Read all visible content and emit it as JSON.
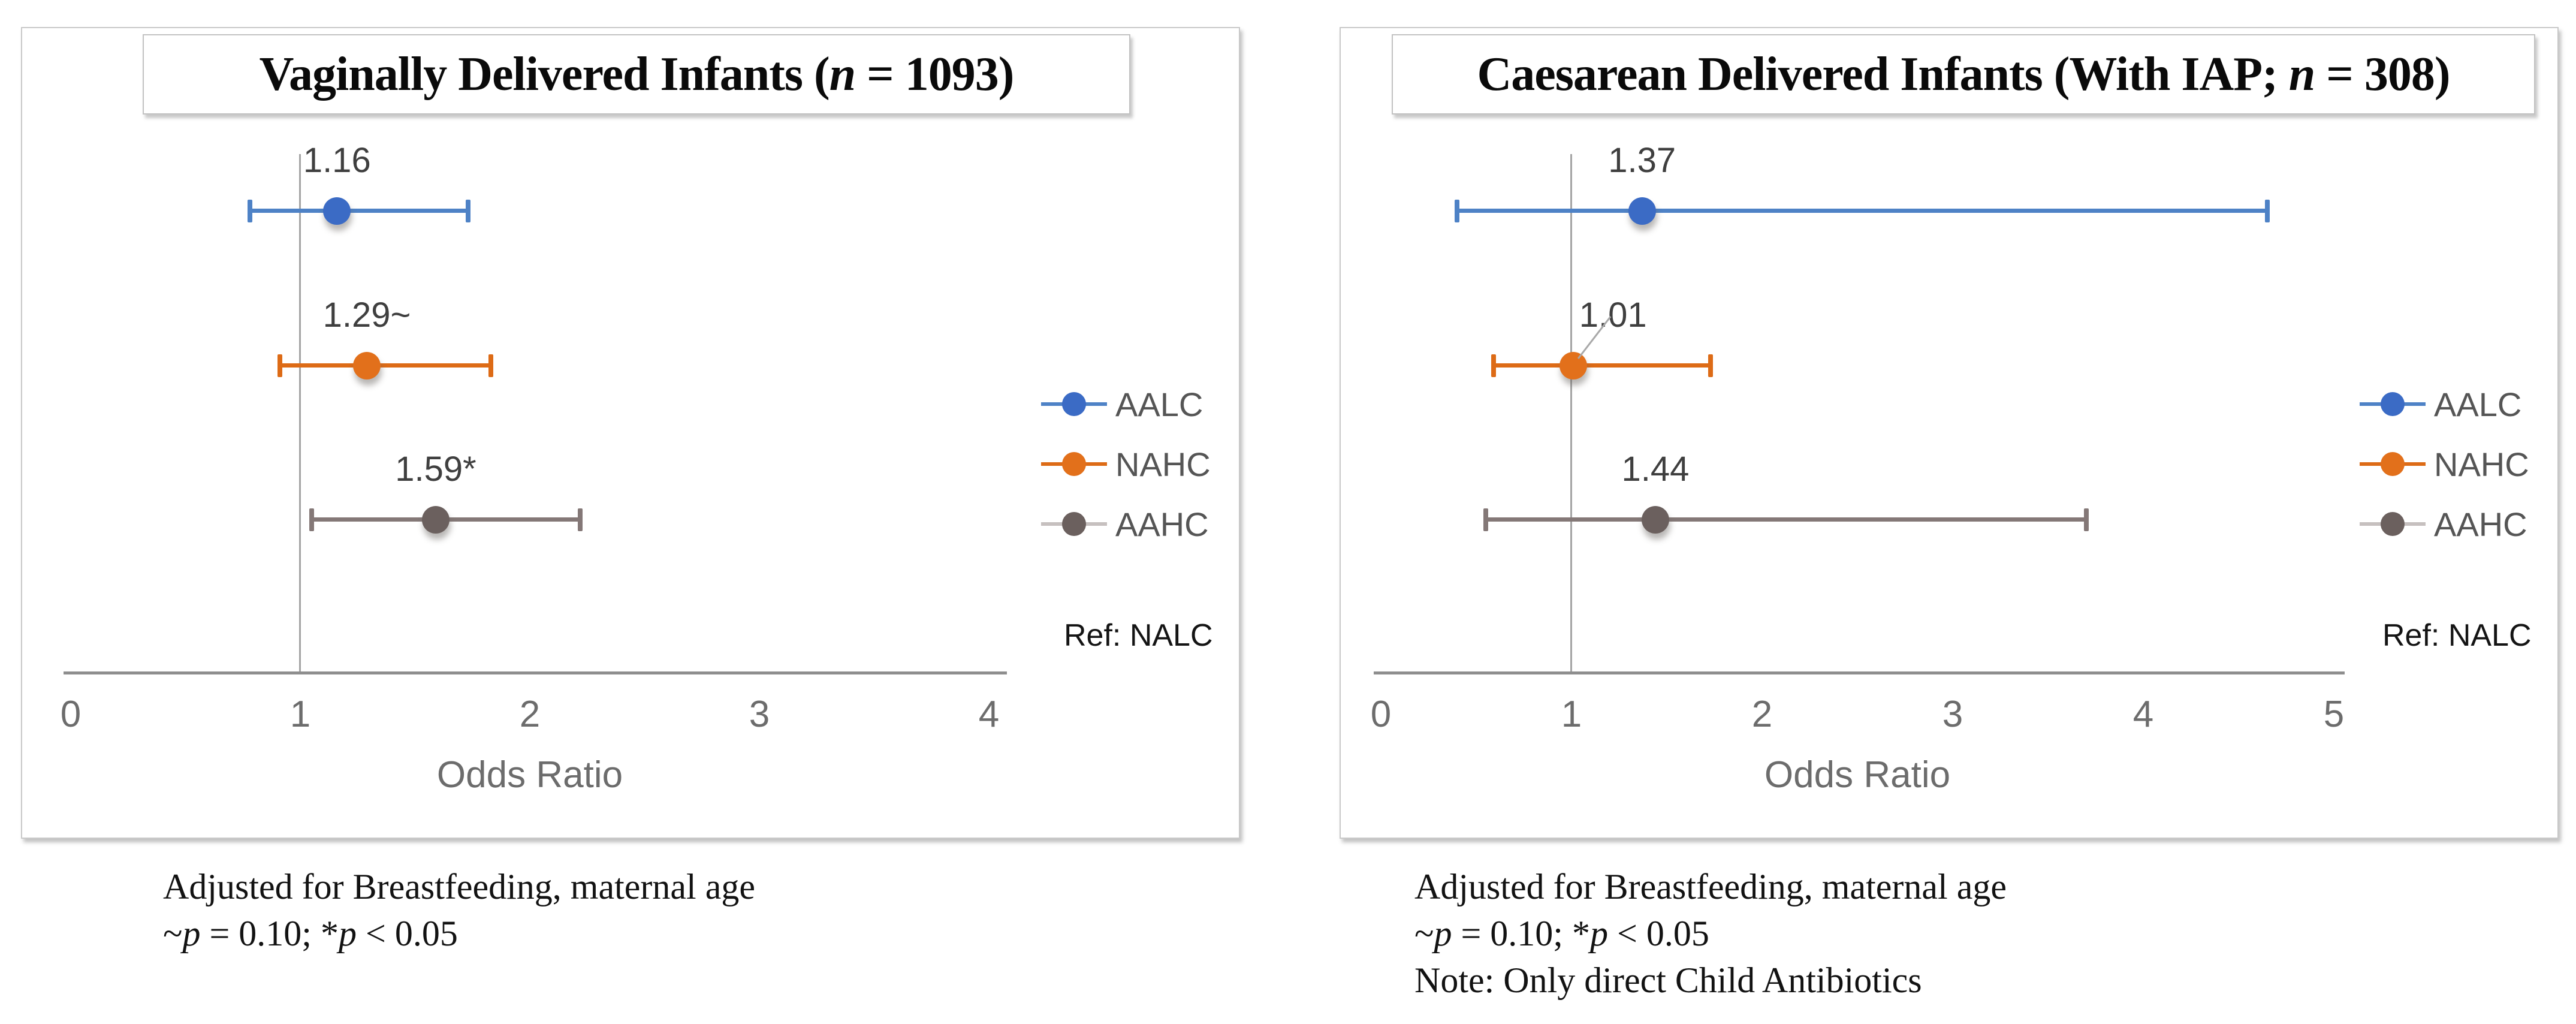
{
  "chart_data": [
    {
      "type": "scatter",
      "title": "Vaginally Delivered Infants (n = 1093)",
      "title_segments": [
        {
          "t": "Vaginally Delivered Infants ("
        },
        {
          "t": "n",
          "i": 1
        },
        {
          "t": " = 1093)"
        }
      ],
      "xlabel": "Odds Ratio",
      "xlim": [
        0,
        4
      ],
      "xticks": [
        "0",
        "1",
        "2",
        "3",
        "4"
      ],
      "reference_line_x": 1,
      "legend_position": "right",
      "grid": "reference line at x=1 only",
      "ref_label": "Ref: NALC",
      "legend_entries": [
        "AALC",
        "NAHC",
        "AAHC"
      ],
      "series": [
        {
          "name": "AALC",
          "odds_ratio": 1.16,
          "ci": [
            0.78,
            1.73
          ],
          "data_label": "1.16",
          "color": "#3B6BC5",
          "line_color": "#4E82C6",
          "legend_line_color": "#4E82C6",
          "leader": false
        },
        {
          "name": "NAHC",
          "odds_ratio": 1.29,
          "ci": [
            0.91,
            1.83
          ],
          "data_label": "1.29~",
          "color": "#E2701B",
          "line_color": "#DD6B16",
          "legend_line_color": "#DD6B16",
          "leader": false
        },
        {
          "name": "AAHC",
          "odds_ratio": 1.59,
          "ci": [
            1.05,
            2.22
          ],
          "data_label": "1.59*",
          "color": "#6B605E",
          "line_color": "#847877",
          "legend_line_color": "#C6C0BF",
          "leader": false
        }
      ],
      "footnote_lines": [
        "Adjusted for Breastfeeding, maternal age",
        "~p = 0.10; *p < 0.05"
      ],
      "footnote_segments": [
        [
          {
            "t": "Adjusted for Breastfeeding, maternal age"
          }
        ],
        [
          {
            "t": "~"
          },
          {
            "t": "p",
            "i": 1
          },
          {
            "t": " = 0.10; *"
          },
          {
            "t": "p",
            "i": 1
          },
          {
            "t": " < 0.05"
          }
        ]
      ]
    },
    {
      "type": "scatter",
      "title": "Caesarean Delivered Infants (With IAP; n = 308)",
      "title_segments": [
        {
          "t": "Caesarean Delivered Infants (With IAP; "
        },
        {
          "t": "n",
          "i": 1
        },
        {
          "t": " = 308)"
        }
      ],
      "xlabel": "Odds Ratio",
      "xlim": [
        0,
        5
      ],
      "xticks": [
        "0",
        "1",
        "2",
        "3",
        "4",
        "5"
      ],
      "reference_line_x": 1,
      "legend_position": "right",
      "grid": "reference line at x=1 only",
      "ref_label": "Ref: NALC",
      "legend_entries": [
        "AALC",
        "NAHC",
        "AAHC"
      ],
      "series": [
        {
          "name": "AALC",
          "odds_ratio": 1.37,
          "ci": [
            0.4,
            4.65
          ],
          "data_label": "1.37",
          "color": "#3B6BC5",
          "line_color": "#4E82C6",
          "legend_line_color": "#4E82C6",
          "leader": false
        },
        {
          "name": "NAHC",
          "odds_ratio": 1.01,
          "ci": [
            0.59,
            1.73
          ],
          "data_label": "1.01",
          "color": "#E2701B",
          "line_color": "#DD6B16",
          "legend_line_color": "#DD6B16",
          "leader": true
        },
        {
          "name": "AAHC",
          "odds_ratio": 1.44,
          "ci": [
            0.55,
            3.7
          ],
          "data_label": "1.44",
          "color": "#6B605E",
          "line_color": "#847877",
          "legend_line_color": "#C6C0BF",
          "leader": false
        }
      ],
      "footnote_lines": [
        "Adjusted for Breastfeeding, maternal age",
        "~p = 0.10; *p < 0.05",
        "Note: Only direct Child Antibiotics"
      ],
      "footnote_segments": [
        [
          {
            "t": "Adjusted for Breastfeeding, maternal age"
          }
        ],
        [
          {
            "t": "~"
          },
          {
            "t": "p",
            "i": 1
          },
          {
            "t": " = 0.10; *"
          },
          {
            "t": "p",
            "i": 1
          },
          {
            "t": " < 0.05"
          }
        ],
        [
          {
            "t": "Note: Only direct Child Antibiotics"
          }
        ]
      ]
    }
  ],
  "colors": {
    "aalc_blue": "#3B6BC5",
    "nahc_orange": "#E2701B",
    "aahc_taupe": "#6B605E",
    "axis_gray": "#8E8E8E",
    "gridline_gray": "#A4A4A4",
    "tick_text_gray": "#6C6C6C",
    "value_label_gray": "#3F3F3F",
    "legend_text_gray": "#555555"
  }
}
